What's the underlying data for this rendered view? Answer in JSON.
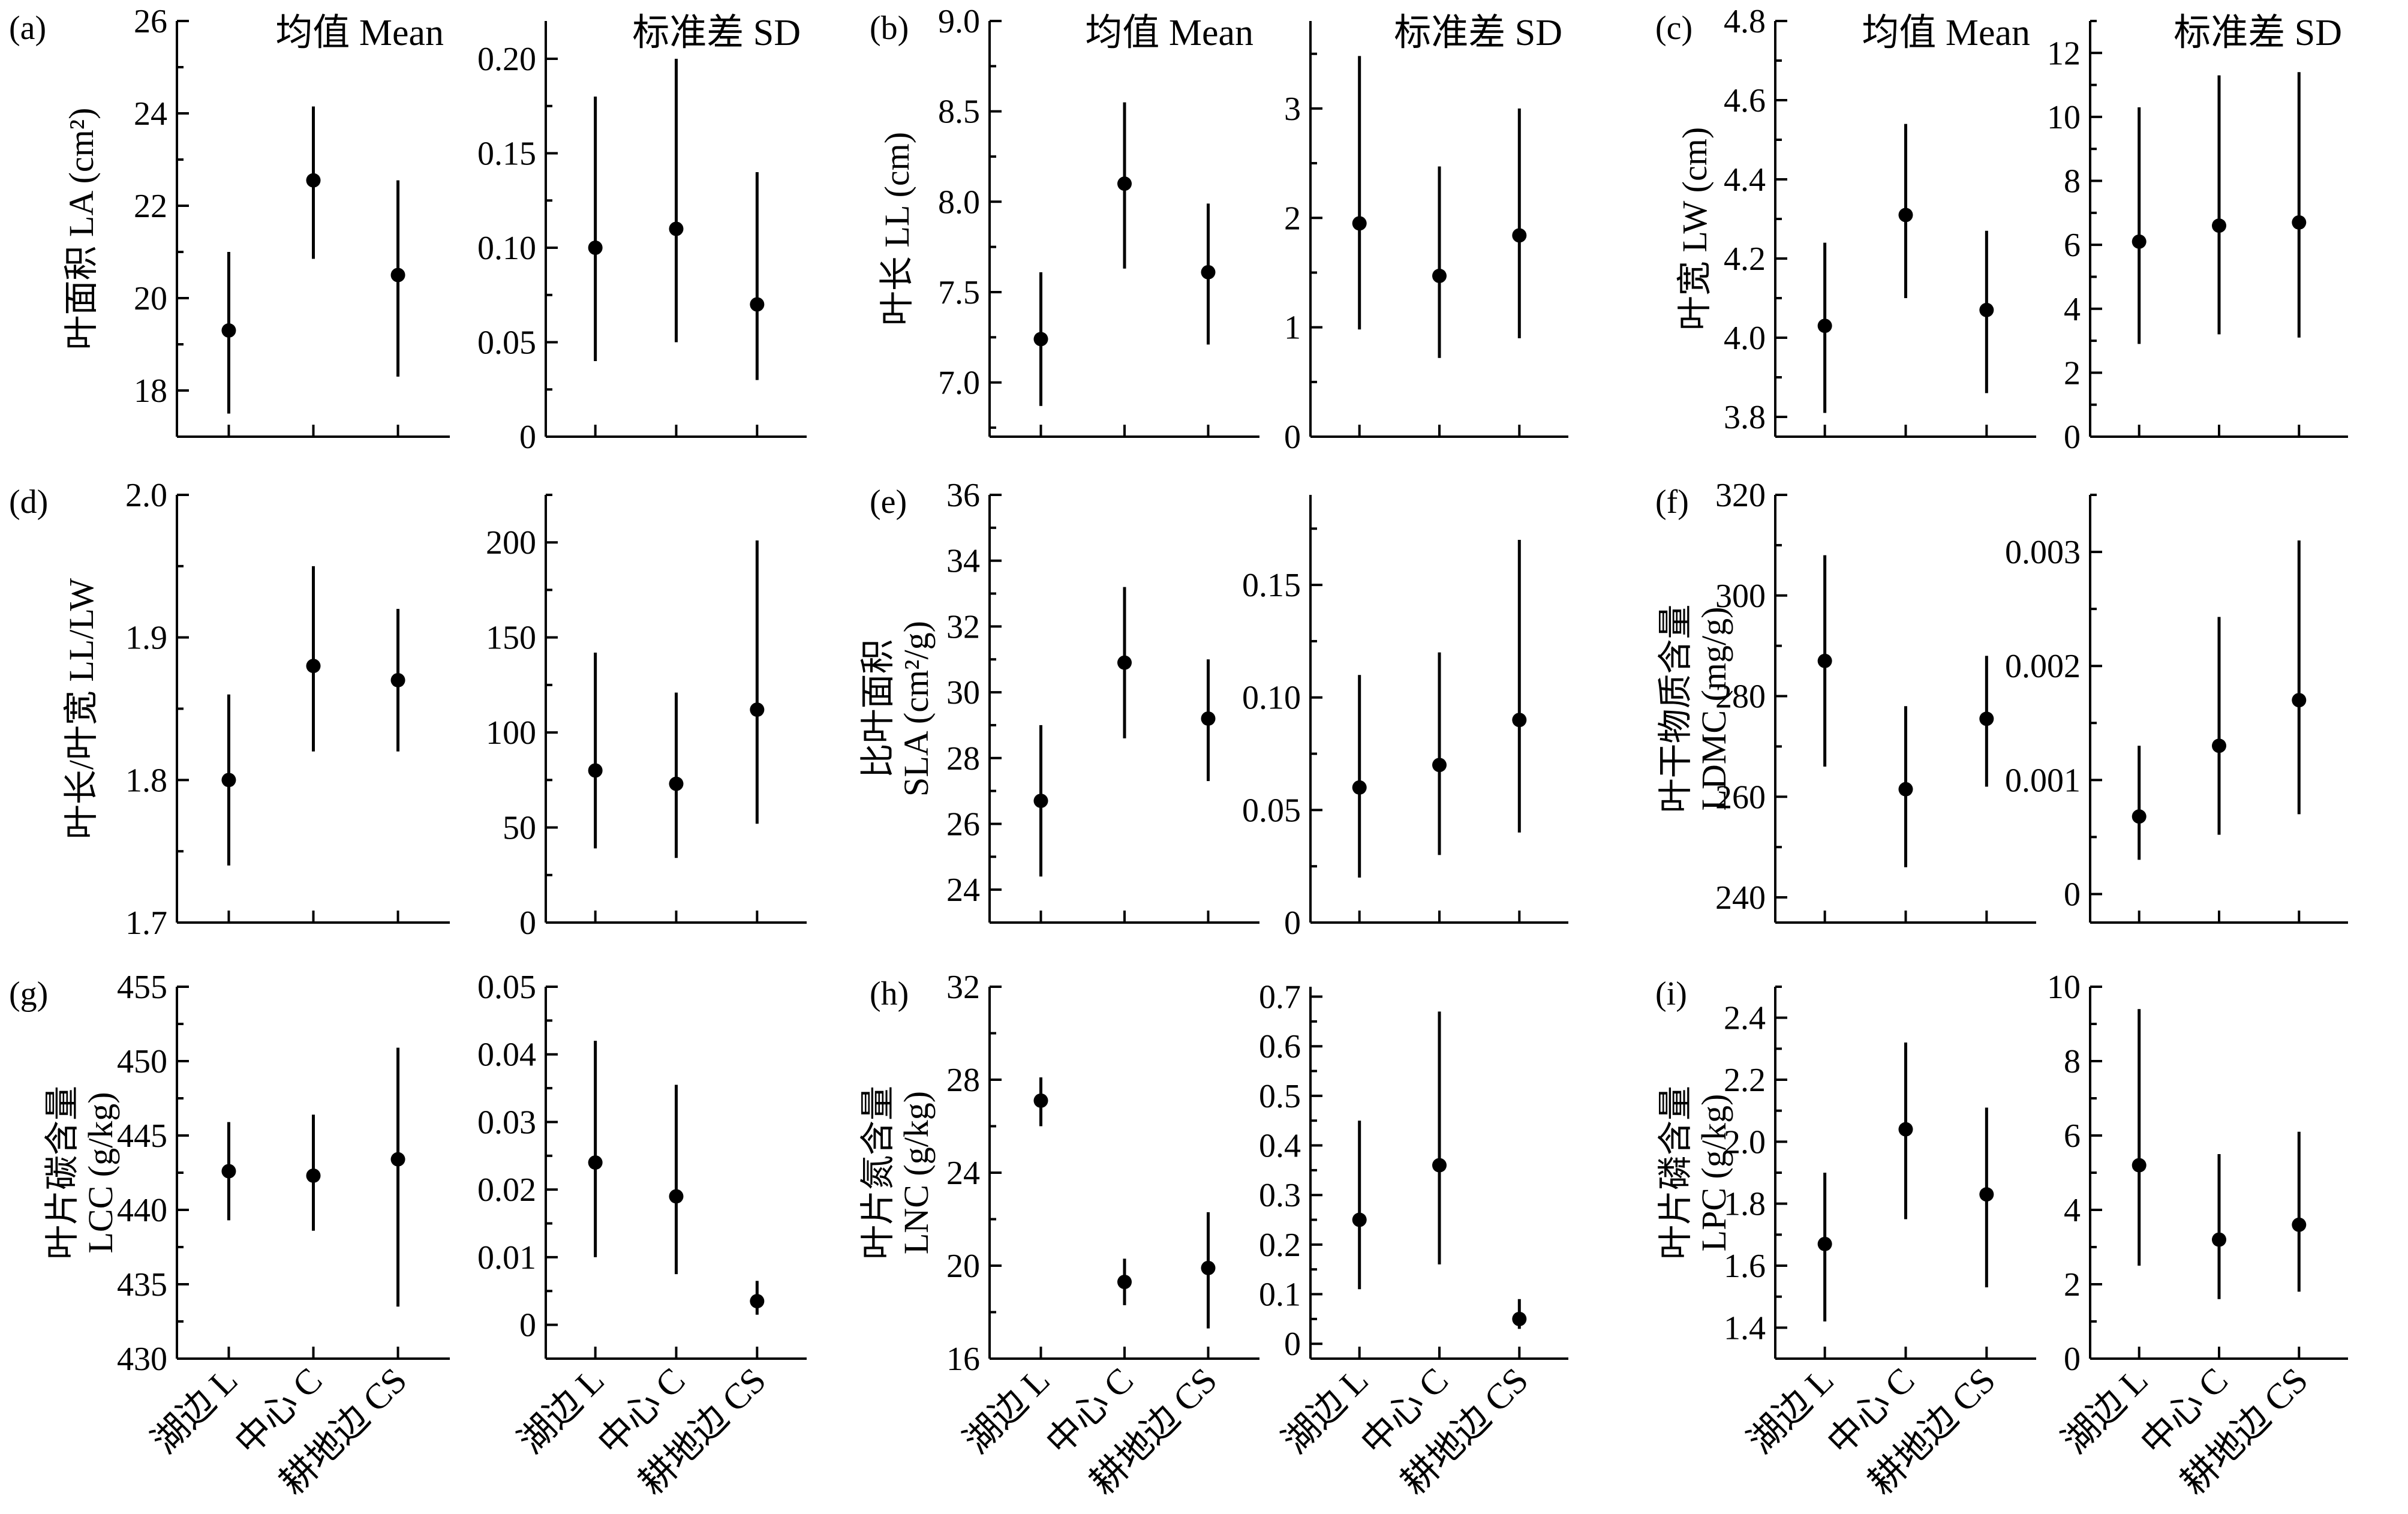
{
  "chart_data": [
    {
      "type": "scatter",
      "panel": "(a)",
      "ylabel": [
        "叶面积 LA (cm²)"
      ],
      "categories": [
        "湖边 L",
        "中心 C",
        "耕地边 CS"
      ],
      "mean": {
        "title": "均值 Mean",
        "ylim": [
          17,
          26
        ],
        "yticks": [
          "18",
          "20",
          "22",
          "24",
          "26"
        ],
        "values": [
          19.3,
          22.55,
          20.5
        ],
        "err_low": [
          17.5,
          20.85,
          18.3
        ],
        "err_high": [
          21.0,
          24.15,
          22.55
        ]
      },
      "sd": {
        "title": "标准差 SD",
        "ylim": [
          0,
          0.22
        ],
        "yticks": [
          "0",
          "0.05",
          "0.10",
          "0.15",
          "0.20"
        ],
        "values": [
          0.1,
          0.11,
          0.07
        ],
        "err_low": [
          0.04,
          0.05,
          0.03
        ],
        "err_high": [
          0.18,
          0.2,
          0.14
        ]
      }
    },
    {
      "type": "scatter",
      "panel": "(b)",
      "ylabel": [
        "叶长 LL (cm)"
      ],
      "categories": [
        "湖边 L",
        "中心 C",
        "耕地边 CS"
      ],
      "mean": {
        "title": "均值 Mean",
        "ylim": [
          6.7,
          9.0
        ],
        "yticks": [
          "7.0",
          "7.5",
          "8.0",
          "8.5",
          "9.0"
        ],
        "values": [
          7.24,
          8.1,
          7.61
        ],
        "err_low": [
          6.87,
          7.63,
          7.21
        ],
        "err_high": [
          7.61,
          8.55,
          7.99
        ]
      },
      "sd": {
        "title": "标准差 SD",
        "ylim": [
          0,
          3.8
        ],
        "yticks": [
          "0",
          "1",
          "2",
          "3"
        ],
        "values": [
          1.95,
          1.47,
          1.84
        ],
        "err_low": [
          0.98,
          0.72,
          0.9
        ],
        "err_high": [
          3.48,
          2.47,
          3.0
        ]
      }
    },
    {
      "type": "scatter",
      "panel": "(c)",
      "ylabel": [
        "叶宽 LW (cm)"
      ],
      "categories": [
        "湖边 L",
        "中心 C",
        "耕地边 CS"
      ],
      "mean": {
        "title": "均值 Mean",
        "ylim": [
          3.75,
          4.8
        ],
        "yticks": [
          "3.8",
          "4.0",
          "4.2",
          "4.4",
          "4.6",
          "4.8"
        ],
        "values": [
          4.03,
          4.31,
          4.07
        ],
        "err_low": [
          3.81,
          4.1,
          3.86
        ],
        "err_high": [
          4.24,
          4.54,
          4.27
        ]
      },
      "sd": {
        "title": "标准差 SD",
        "ylim": [
          0,
          13
        ],
        "yticks": [
          "0",
          "2",
          "4",
          "6",
          "8",
          "10",
          "12"
        ],
        "values": [
          6.1,
          6.6,
          6.7
        ],
        "err_low": [
          2.9,
          3.2,
          3.1
        ],
        "err_high": [
          10.3,
          11.3,
          11.4
        ]
      }
    },
    {
      "type": "scatter",
      "panel": "(d)",
      "ylabel": [
        "叶长/叶宽 LL/LW"
      ],
      "categories": [
        "湖边 L",
        "中心 C",
        "耕地边 CS"
      ],
      "mean": {
        "title": "",
        "ylim": [
          1.7,
          2.0
        ],
        "yticks": [
          "1.7",
          "1.8",
          "1.9",
          "2.0"
        ],
        "values": [
          1.8,
          1.88,
          1.87
        ],
        "err_low": [
          1.74,
          1.82,
          1.82
        ],
        "err_high": [
          1.86,
          1.95,
          1.92
        ]
      },
      "sd": {
        "title": "",
        "ylim": [
          0,
          225
        ],
        "yticks": [
          "0",
          "50",
          "100",
          "150",
          "200"
        ],
        "values": [
          80,
          73,
          112
        ],
        "err_low": [
          39,
          34,
          52
        ],
        "err_high": [
          142,
          121,
          201
        ]
      }
    },
    {
      "type": "scatter",
      "panel": "(e)",
      "ylabel": [
        "比叶面积",
        "SLA (cm²/g)"
      ],
      "categories": [
        "湖边 L",
        "中心 C",
        "耕地边 CS"
      ],
      "mean": {
        "title": "",
        "ylim": [
          23,
          36
        ],
        "yticks": [
          "24",
          "26",
          "28",
          "30",
          "32",
          "34",
          "36"
        ],
        "values": [
          26.7,
          30.9,
          29.2
        ],
        "err_low": [
          24.4,
          28.6,
          27.3
        ],
        "err_high": [
          29.0,
          33.2,
          31.0
        ]
      },
      "sd": {
        "title": "",
        "ylim": [
          0,
          0.19
        ],
        "yticks": [
          "0",
          "0.05",
          "0.10",
          "0.15"
        ],
        "values": [
          0.06,
          0.07,
          0.09
        ],
        "err_low": [
          0.02,
          0.03,
          0.04
        ],
        "err_high": [
          0.11,
          0.12,
          0.17
        ]
      }
    },
    {
      "type": "scatter",
      "panel": "(f)",
      "ylabel": [
        "叶干物质含量",
        "LDMC (mg/g)"
      ],
      "categories": [
        "湖边 L",
        "中心 C",
        "耕地边 CS"
      ],
      "mean": {
        "title": "",
        "ylim": [
          235,
          320
        ],
        "yticks": [
          "240",
          "260",
          "280",
          "300",
          "320"
        ],
        "values": [
          287,
          261.5,
          275.5
        ],
        "err_low": [
          266,
          246,
          262
        ],
        "err_high": [
          308,
          278,
          288
        ]
      },
      "sd": {
        "title": "",
        "ylim": [
          -0.00025,
          0.0035
        ],
        "yticks": [
          "0",
          "0.001",
          "0.002",
          "0.003"
        ],
        "values": [
          0.00068,
          0.0013,
          0.0017
        ],
        "err_low": [
          0.0003,
          0.00052,
          0.0007
        ],
        "err_high": [
          0.0013,
          0.00243,
          0.0031
        ]
      }
    },
    {
      "type": "scatter",
      "panel": "(g)",
      "ylabel": [
        "叶片碳含量",
        "LCC (g/kg)"
      ],
      "categories": [
        "湖边 L",
        "中心 C",
        "耕地边 CS"
      ],
      "mean": {
        "title": "",
        "ylim": [
          430,
          455
        ],
        "yticks": [
          "430",
          "435",
          "440",
          "445",
          "450",
          "455"
        ],
        "values": [
          442.6,
          442.3,
          443.4
        ],
        "err_low": [
          439.3,
          438.6,
          433.5
        ],
        "err_high": [
          445.9,
          446.4,
          450.9
        ]
      },
      "sd": {
        "title": "",
        "ylim": [
          -0.005,
          0.05
        ],
        "yticks": [
          "0",
          "0.01",
          "0.02",
          "0.03",
          "0.04",
          "0.05"
        ],
        "values": [
          0.024,
          0.019,
          0.0035
        ],
        "err_low": [
          0.01,
          0.0075,
          0.0015
        ],
        "err_high": [
          0.042,
          0.0355,
          0.0065
        ]
      }
    },
    {
      "type": "scatter",
      "panel": "(h)",
      "ylabel": [
        "叶片氮含量",
        "LNC (g/kg)"
      ],
      "categories": [
        "湖边 L",
        "中心 C",
        "耕地边 CS"
      ],
      "mean": {
        "title": "",
        "ylim": [
          16,
          32
        ],
        "yticks": [
          "16",
          "20",
          "24",
          "28",
          "32"
        ],
        "values": [
          27.1,
          19.3,
          19.9
        ],
        "err_low": [
          26.0,
          18.3,
          17.3
        ],
        "err_high": [
          28.1,
          20.3,
          22.3
        ]
      },
      "sd": {
        "title": "",
        "ylim": [
          -0.03,
          0.72
        ],
        "yticks": [
          "0",
          "0.1",
          "0.2",
          "0.3",
          "0.4",
          "0.5",
          "0.6",
          "0.7"
        ],
        "values": [
          0.25,
          0.36,
          0.05
        ],
        "err_low": [
          0.11,
          0.16,
          0.03
        ],
        "err_high": [
          0.45,
          0.67,
          0.09
        ]
      }
    },
    {
      "type": "scatter",
      "panel": "(i)",
      "ylabel": [
        "叶片磷含量",
        "LPC (g/kg)"
      ],
      "categories": [
        "湖边 L",
        "中心 C",
        "耕地边 CS"
      ],
      "mean": {
        "title": "",
        "ylim": [
          1.3,
          2.5
        ],
        "yticks": [
          "1.4",
          "1.6",
          "1.8",
          "2.0",
          "2.2",
          "2.4"
        ],
        "values": [
          1.67,
          2.04,
          1.83
        ],
        "err_low": [
          1.42,
          1.75,
          1.53
        ],
        "err_high": [
          1.9,
          2.32,
          2.11
        ]
      },
      "sd": {
        "title": "",
        "ylim": [
          0,
          10
        ],
        "yticks": [
          "0",
          "2",
          "4",
          "6",
          "8",
          "10"
        ],
        "values": [
          5.2,
          3.2,
          3.6
        ],
        "err_low": [
          2.5,
          1.6,
          1.8
        ],
        "err_high": [
          9.4,
          5.5,
          6.1
        ]
      }
    }
  ]
}
